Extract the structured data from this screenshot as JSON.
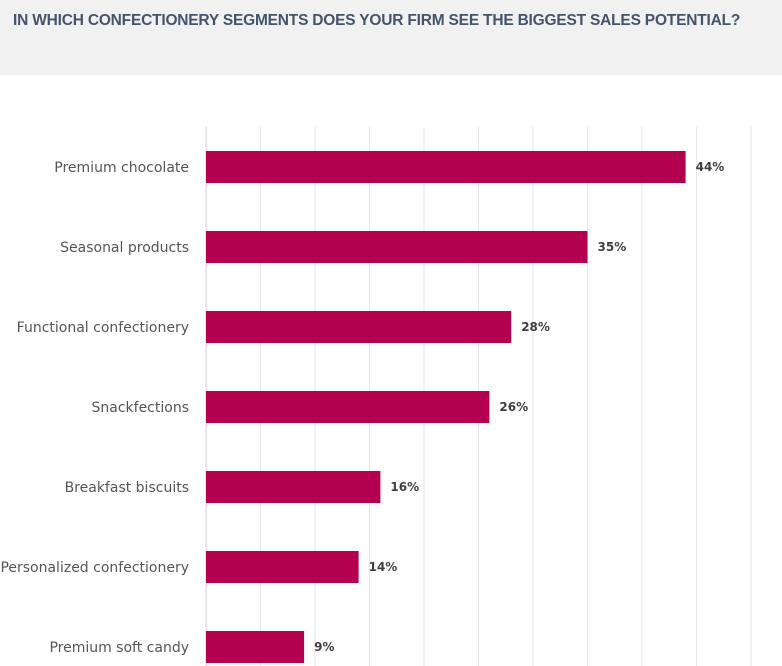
{
  "chart_data": {
    "type": "bar",
    "orientation": "horizontal",
    "title": "IN WHICH CONFECTIONERY SEGMENTS DOES YOUR FIRM SEE THE BIGGEST SALES POTENTIAL?",
    "categories": [
      "Premium chocolate",
      "Seasonal products",
      "Functional confectionery",
      "Snackfections",
      "Breakfast biscuits",
      "Personalized confectionery",
      "Premium soft candy"
    ],
    "values": [
      44,
      35,
      28,
      26,
      16,
      14,
      9
    ],
    "value_labels": [
      "44%",
      "35%",
      "28%",
      "26%",
      "16%",
      "14%",
      "9%"
    ],
    "xlim": [
      0,
      50
    ],
    "grid_step": 5,
    "grid": true,
    "xlabel": "",
    "ylabel": "",
    "bar_color": "#b3004f"
  }
}
